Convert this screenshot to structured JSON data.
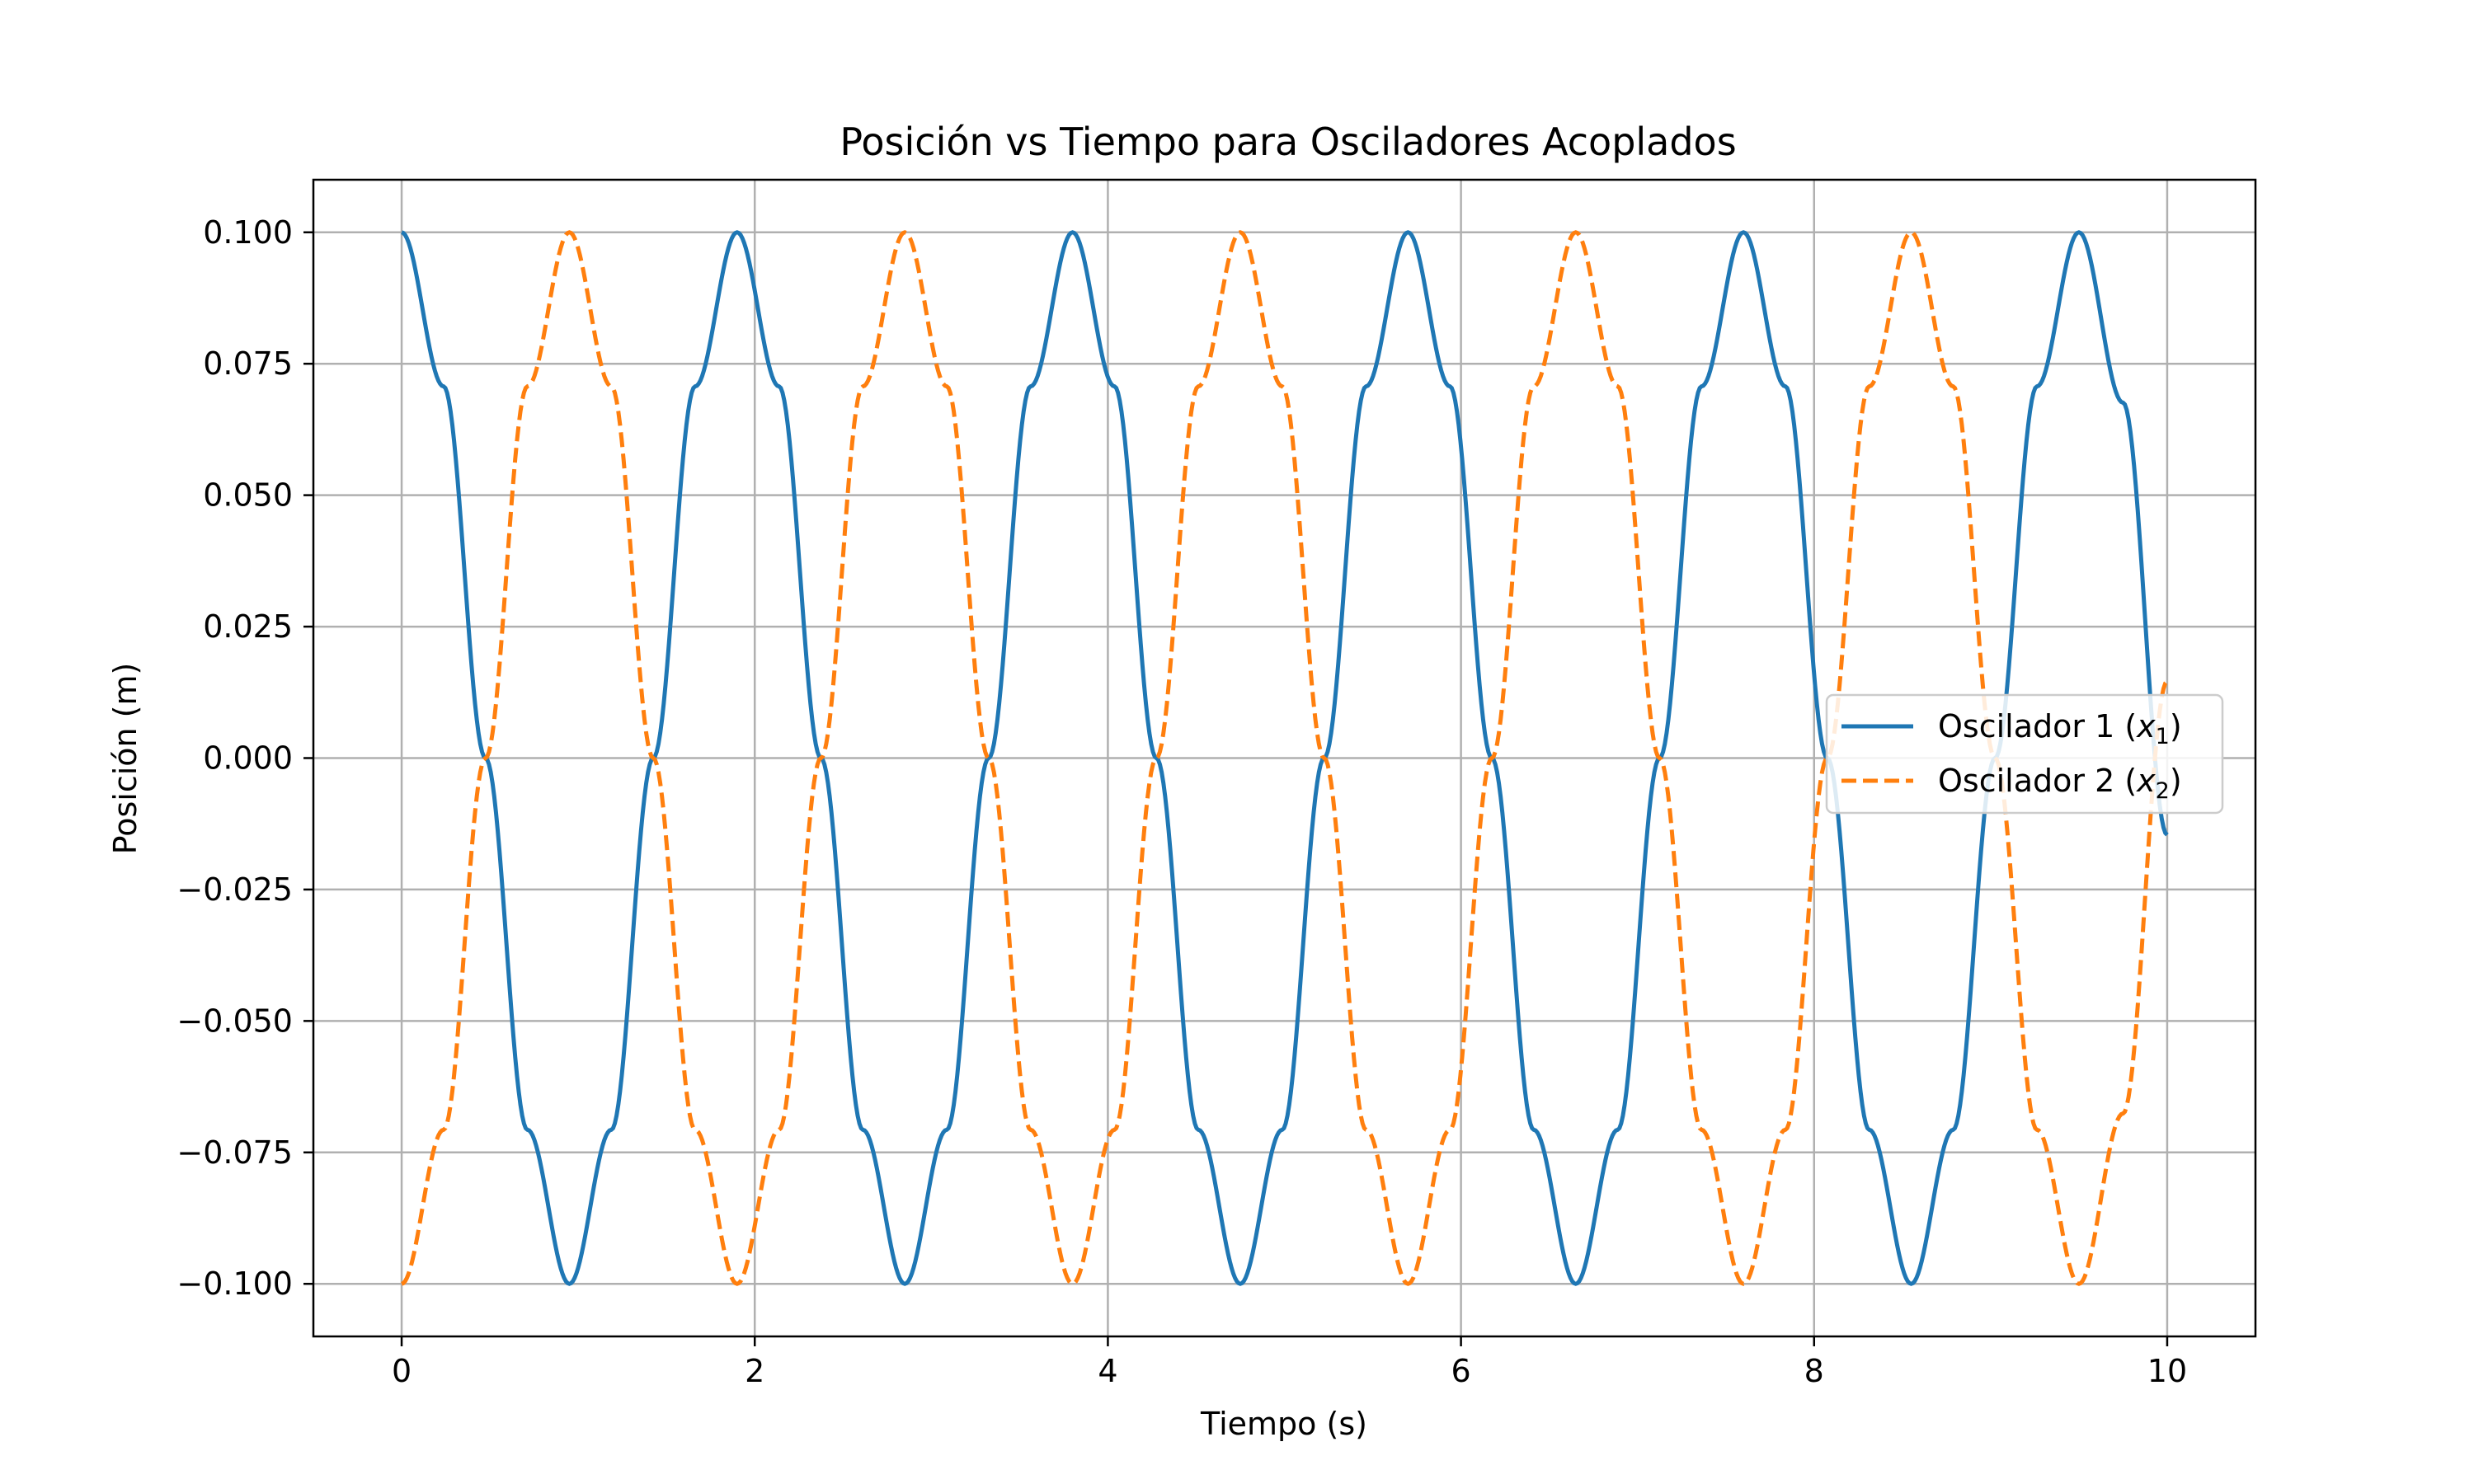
{
  "chart_data": {
    "type": "line",
    "title": "Posición vs Tiempo para Osciladores Acoplados",
    "xlabel": "Tiempo (s)",
    "ylabel": "Posición (m)",
    "xlim": [
      -0.5,
      10.5
    ],
    "ylim": [
      -0.11,
      0.11
    ],
    "grid": true,
    "legend_position": "center-right",
    "xticks": [
      0,
      2,
      4,
      6,
      8,
      10
    ],
    "xtick_labels": [
      "0",
      "2",
      "4",
      "6",
      "8",
      "10"
    ],
    "yticks": [
      0.1,
      0.075,
      0.05,
      0.025,
      0.0,
      -0.025,
      -0.05,
      -0.075,
      -0.1
    ],
    "ytick_labels": [
      "0.100",
      "0.075",
      "0.050",
      "0.025",
      "0.000",
      "−0.025",
      "−0.050",
      "−0.075",
      "−0.100"
    ],
    "series": [
      {
        "name": "Oscilador 1 (x₁)",
        "legend_main": "Oscilador 1 (",
        "legend_var": "x",
        "legend_sub": "1",
        "legend_close": ")",
        "color": "#1f77b4",
        "line_style": "solid",
        "x": [
          0,
          0.2375,
          0.475,
          0.7125,
          0.95,
          1.1875,
          1.425,
          1.6625,
          1.9,
          2.1375,
          2.375,
          2.6125,
          2.85,
          3.0875,
          3.325,
          3.5625,
          3.8,
          4.0375,
          4.275,
          4.5125,
          4.75,
          4.9875,
          5.225,
          5.4625,
          5.7,
          5.9375,
          6.175,
          6.4125,
          6.65,
          6.8875,
          7.125,
          7.3625,
          7.6,
          7.8375,
          8.075,
          8.3125,
          8.55,
          8.7875,
          9.025,
          9.2625,
          9.5,
          9.75,
          10.0
        ],
        "y": [
          0.1,
          0.0707,
          0.0,
          -0.0707,
          -0.1,
          -0.0707,
          0.0,
          0.0707,
          0.1,
          0.0707,
          0.0,
          -0.0707,
          -0.1,
          -0.0707,
          0.0,
          0.0707,
          0.1,
          0.0707,
          0.0,
          -0.0707,
          -0.1,
          -0.0707,
          0.0,
          0.0707,
          0.1,
          0.0707,
          0.0,
          -0.0707,
          -0.1,
          -0.0707,
          0.0,
          0.0707,
          0.1,
          0.0707,
          0.0,
          -0.0707,
          -0.1,
          -0.0707,
          0.0,
          0.0707,
          0.1,
          0.0676,
          -0.0146
        ]
      },
      {
        "name": "Oscilador 2 (x₂)",
        "legend_main": "Oscilador 2 (",
        "legend_var": "x",
        "legend_sub": "2",
        "legend_close": ")",
        "color": "#ff7f0e",
        "line_style": "dashed",
        "x": [
          0,
          0.2375,
          0.475,
          0.7125,
          0.95,
          1.1875,
          1.425,
          1.6625,
          1.9,
          2.1375,
          2.375,
          2.6125,
          2.85,
          3.0875,
          3.325,
          3.5625,
          3.8,
          4.0375,
          4.275,
          4.5125,
          4.75,
          4.9875,
          5.225,
          5.4625,
          5.7,
          5.9375,
          6.175,
          6.4125,
          6.65,
          6.8875,
          7.125,
          7.3625,
          7.6,
          7.8375,
          8.075,
          8.3125,
          8.55,
          8.7875,
          9.025,
          9.2625,
          9.5,
          9.75,
          10.0
        ],
        "y": [
          -0.1,
          -0.0707,
          0.0,
          0.0707,
          0.1,
          0.0707,
          0.0,
          -0.0707,
          -0.1,
          -0.0707,
          0.0,
          0.0707,
          0.1,
          0.0707,
          0.0,
          -0.0707,
          -0.1,
          -0.0707,
          0.0,
          0.0707,
          0.1,
          0.0707,
          0.0,
          -0.0707,
          -0.1,
          -0.0707,
          0.0,
          0.0707,
          0.1,
          0.0707,
          0.0,
          -0.0707,
          -0.1,
          -0.0707,
          0.0,
          0.0707,
          0.1,
          0.0707,
          0.0,
          -0.0707,
          -0.1,
          -0.0676,
          0.0146
        ]
      }
    ]
  }
}
